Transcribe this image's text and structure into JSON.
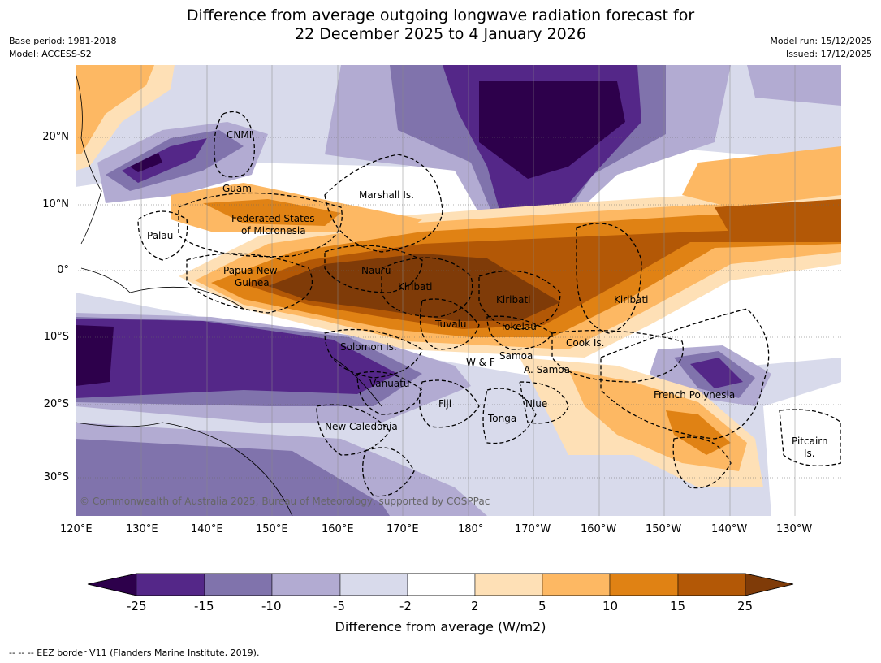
{
  "title_line1": "Difference from average outgoing longwave radiation forecast for",
  "title_line2": "22 December 2025 to 4 January 2026",
  "base_period": "Base period: 1981-2018",
  "model": "Model: ACCESS-S2",
  "model_run": "Model run: 15/12/2025",
  "issued": "Issued: 17/12/2025",
  "copyright": "© Commonwealth of Australia 2025, Bureau of Meteorology, supported by COSPPac",
  "lon_labels": [
    "120°E",
    "130°E",
    "140°E",
    "150°E",
    "160°E",
    "170°E",
    "180°",
    "170°W",
    "160°W",
    "150°W",
    "140°W",
    "130°W"
  ],
  "lat_labels": [
    "20°N",
    "10°N",
    "0°",
    "10°S",
    "20°S",
    "30°S"
  ],
  "regions": {
    "cnmi": "CNMI",
    "guam": "Guam",
    "marshall": "Marshall Is.",
    "fsm1": "Federated States",
    "fsm2": "of Micronesia",
    "palau": "Palau",
    "png1": "Papua New",
    "png2": "Guinea",
    "nauru": "Nauru",
    "kiribati_w": "Kiribati",
    "kiribati_c": "Kiribati",
    "kiribati_e": "Kiribati",
    "tuvalu": "Tuvalu",
    "tokelau": "Tokelau",
    "cook": "Cook Is.",
    "solomon": "Solomon Is.",
    "wf": "W & F",
    "samoa": "Samoa",
    "asamoa": "A. Samoa",
    "vanuatu": "Vanuatu",
    "fiji": "Fiji",
    "niue": "Niue",
    "tonga": "Tonga",
    "french_poly": "French Polynesia",
    "new_cal": "New Caledonia",
    "pitcairn1": "Pitcairn",
    "pitcairn2": "Is."
  },
  "colorbar": {
    "ticks": [
      "-25",
      "-15",
      "-10",
      "-5",
      "-2",
      "2",
      "5",
      "10",
      "15",
      "25"
    ],
    "colors": [
      "#2d004b",
      "#542788",
      "#8073ac",
      "#b2abd2",
      "#d8daeb",
      "#ffffff",
      "#fee0b6",
      "#fdb863",
      "#e08214",
      "#b35806",
      "#7f3b08"
    ],
    "label": "Difference from average (W/m2)"
  },
  "footnote": "-- -- -- EEZ border V11 (Flanders Marine Institute, 2019)."
}
